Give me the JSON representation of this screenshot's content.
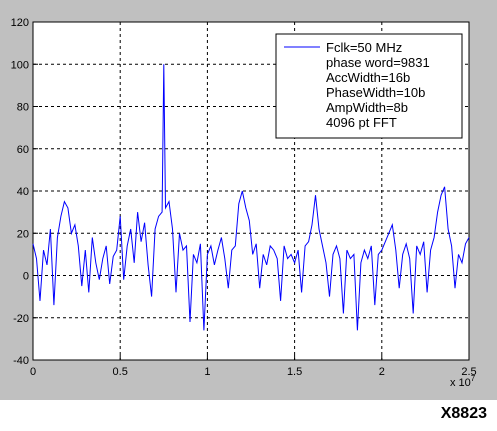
{
  "figure_id": "X8823",
  "chart_data": {
    "type": "line",
    "title": "",
    "xlabel": "",
    "ylabel": "",
    "x_exponent_label": "x 10",
    "x_exponent_power": "7",
    "xlim": [
      0,
      2.5
    ],
    "ylim": [
      -40,
      120
    ],
    "x_ticks": [
      0,
      0.5,
      1,
      1.5,
      2,
      2.5
    ],
    "x_tick_labels": [
      "0",
      "0.5",
      "1",
      "1.5",
      "2",
      "2.5"
    ],
    "y_ticks": [
      -40,
      -20,
      0,
      20,
      40,
      60,
      80,
      100,
      120
    ],
    "y_tick_labels": [
      "-40",
      "-20",
      "0",
      "20",
      "40",
      "60",
      "80",
      "100",
      "120"
    ],
    "grid": true,
    "legend_position": "top-right",
    "legend_lines": [
      "phase word=9831",
      "AccWidth=16b",
      "PhaseWidth=10b",
      "AmpWidth=8b",
      "4096 pt FFT"
    ],
    "series": [
      {
        "name": "Fclk=50 MHz",
        "color": "#0000ff",
        "x": [
          0,
          0.02,
          0.04,
          0.06,
          0.08,
          0.1,
          0.12,
          0.14,
          0.16,
          0.18,
          0.2,
          0.22,
          0.24,
          0.26,
          0.28,
          0.3,
          0.32,
          0.34,
          0.36,
          0.38,
          0.4,
          0.42,
          0.44,
          0.46,
          0.48,
          0.5,
          0.52,
          0.54,
          0.56,
          0.58,
          0.6,
          0.62,
          0.64,
          0.66,
          0.68,
          0.7,
          0.72,
          0.74,
          0.75,
          0.76,
          0.78,
          0.8,
          0.82,
          0.84,
          0.86,
          0.88,
          0.9,
          0.92,
          0.94,
          0.96,
          0.98,
          1,
          1.02,
          1.04,
          1.06,
          1.08,
          1.1,
          1.12,
          1.14,
          1.16,
          1.18,
          1.2,
          1.22,
          1.24,
          1.26,
          1.28,
          1.3,
          1.32,
          1.34,
          1.36,
          1.38,
          1.4,
          1.42,
          1.44,
          1.46,
          1.48,
          1.5,
          1.52,
          1.54,
          1.56,
          1.58,
          1.6,
          1.62,
          1.64,
          1.66,
          1.68,
          1.7,
          1.72,
          1.74,
          1.76,
          1.78,
          1.8,
          1.82,
          1.84,
          1.86,
          1.88,
          1.9,
          1.92,
          1.94,
          1.96,
          1.98,
          2,
          2.02,
          2.04,
          2.06,
          2.08,
          2.1,
          2.12,
          2.14,
          2.16,
          2.18,
          2.2,
          2.22,
          2.24,
          2.26,
          2.28,
          2.3,
          2.32,
          2.34,
          2.36,
          2.38,
          2.4,
          2.42,
          2.44,
          2.46,
          2.48,
          2.5
        ],
        "y": [
          15,
          8,
          -12,
          12,
          5,
          22,
          -14,
          18,
          28,
          35,
          32,
          20,
          24,
          14,
          -5,
          12,
          -8,
          18,
          6,
          -2,
          8,
          14,
          -4,
          9,
          12,
          28,
          -2,
          14,
          22,
          6,
          30,
          16,
          25,
          5,
          -10,
          22,
          28,
          30,
          100,
          32,
          35,
          22,
          -8,
          20,
          12,
          14,
          -22,
          10,
          6,
          15,
          -26,
          10,
          14,
          5,
          12,
          18,
          8,
          -6,
          12,
          14,
          34,
          40,
          32,
          26,
          10,
          15,
          -6,
          10,
          5,
          14,
          12,
          8,
          -12,
          14,
          8,
          10,
          6,
          12,
          -8,
          14,
          16,
          24,
          38,
          22,
          14,
          6,
          -10,
          10,
          14,
          8,
          -18,
          12,
          8,
          10,
          -26,
          6,
          12,
          8,
          14,
          -14,
          10,
          12,
          16,
          20,
          24,
          12,
          -6,
          10,
          15,
          8,
          -18,
          14,
          10,
          16,
          -8,
          12,
          18,
          30,
          38,
          42,
          22,
          14,
          -6,
          10,
          6,
          15,
          18
        ]
      }
    ]
  }
}
